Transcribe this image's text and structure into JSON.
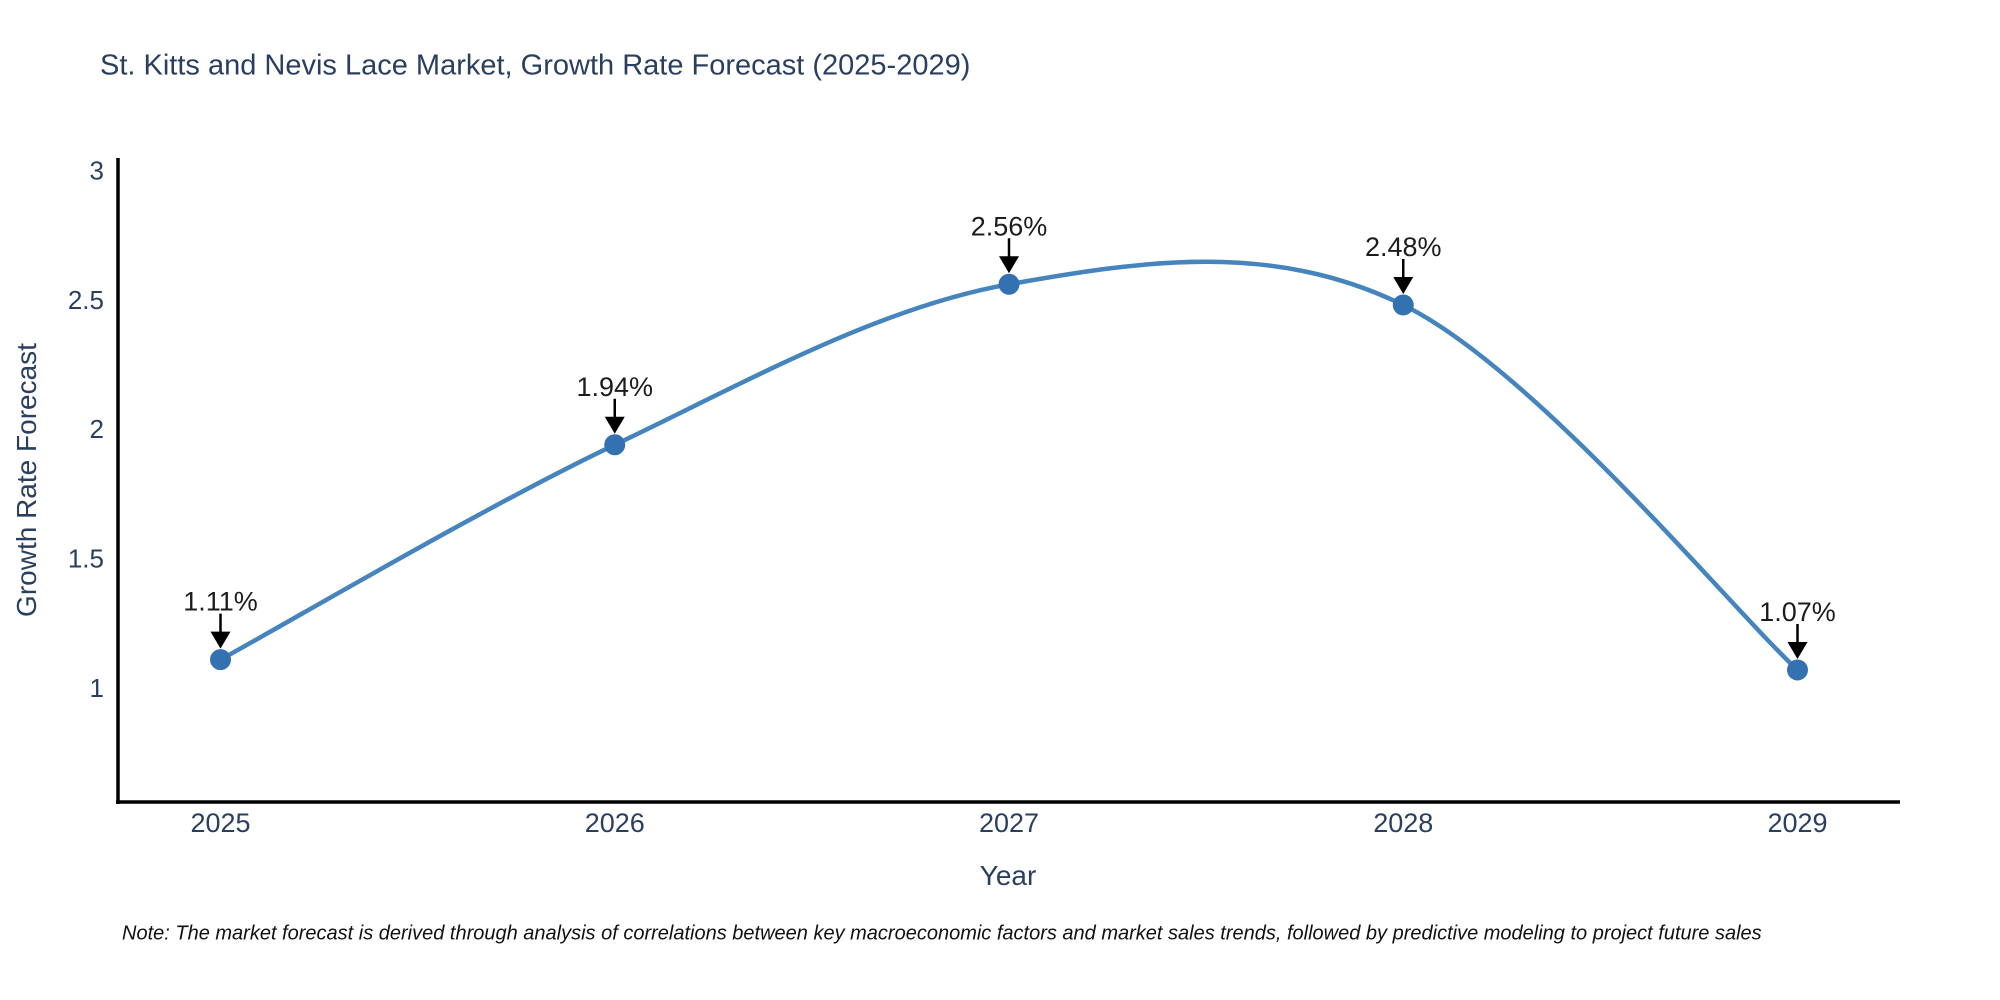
{
  "title": "St. Kitts and Nevis Lace Market, Growth Rate Forecast (2025-2029)",
  "note": "Note: The market forecast is derived through analysis of correlations between key macroeconomic factors and market sales trends, followed by predictive modeling to project future sales",
  "chart_data": {
    "type": "line",
    "title": "St. Kitts and Nevis Lace Market, Growth Rate Forecast (2025-2029)",
    "xlabel": "Year",
    "ylabel": "Growth Rate Forecast",
    "x": [
      2025,
      2026,
      2027,
      2028,
      2029
    ],
    "values": [
      1.11,
      1.94,
      2.56,
      2.48,
      1.07
    ],
    "series": [
      {
        "name": "Growth Rate Forecast",
        "values": [
          1.11,
          1.94,
          2.56,
          2.48,
          1.07
        ]
      }
    ],
    "point_labels": [
      "1.11%",
      "1.94%",
      "2.56%",
      "2.48%",
      "1.07%"
    ],
    "x_tick_labels": [
      "2025",
      "2026",
      "2027",
      "2028",
      "2029"
    ],
    "y_ticks": [
      3,
      2.5,
      2,
      1.5,
      1
    ],
    "y_tick_labels": [
      "3",
      "2.5",
      "2",
      "1.5",
      "1"
    ],
    "xlim": [
      2024.74,
      2029.26
    ],
    "ylim": [
      0.56,
      3.04
    ],
    "grid": false,
    "legend_position": "none",
    "line_shape": "spline",
    "colors": {
      "line": "#4584bd",
      "marker": "#3371b1",
      "annotation_text": "#1c1c1c",
      "arrow": "#000000",
      "axis_line": "#000000",
      "tick_text": "#2a3f5f",
      "title_text": "#2a3f5f",
      "background": "#ffffff"
    }
  }
}
